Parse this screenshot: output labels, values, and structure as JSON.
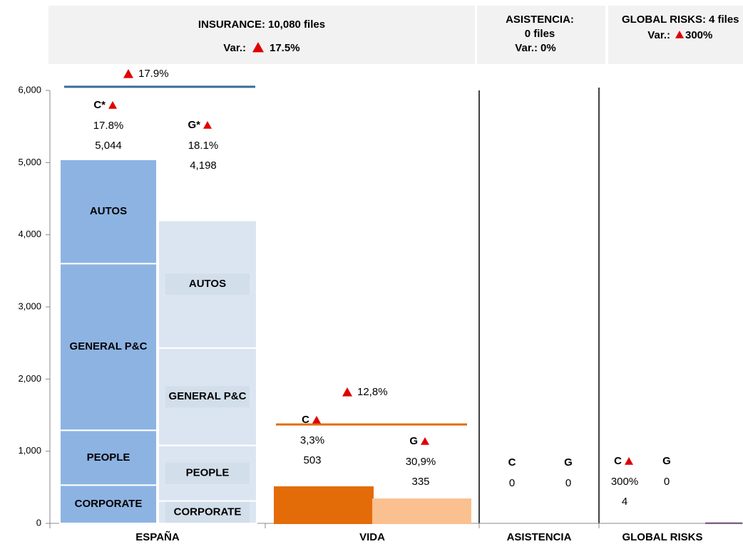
{
  "chart_data": {
    "type": "segmented_bar",
    "headers": [
      {
        "title": "INSURANCE:",
        "files": "10,080 files",
        "var_label": "Var.:",
        "var_value": "17.5%"
      },
      {
        "title": "ASISTENCIA:",
        "files": "0 files",
        "var_label": "Var.:",
        "var_value": "0%"
      },
      {
        "title": "GLOBAL RISKS:",
        "files": "4 files",
        "var_label": "Var.:",
        "var_value": "300%"
      }
    ],
    "ylim": [
      0,
      6000
    ],
    "yticks": [
      0,
      {
        "value": 1000,
        "label": "1,000"
      },
      {
        "value": 2000,
        "label": "2,000"
      },
      {
        "value": 3000,
        "label": "3,000"
      },
      {
        "value": 4000,
        "label": "4,000"
      },
      {
        "value": 5000,
        "label": "5,000"
      },
      {
        "value": 6000,
        "label": "6,000"
      }
    ],
    "categories": [
      "ESPAÑA",
      "VIDA",
      "ASISTENCIA",
      "GLOBAL RISKS"
    ],
    "groups": [
      {
        "var": "17.9%",
        "line_value": 6050,
        "line_color": "#3a6a96",
        "bars": [
          {
            "letter": "C*",
            "var": "17.8%",
            "value": 5044,
            "value_label": "5,044",
            "color": "#8db3e2",
            "segments": [
              {
                "name": "CORPORATE",
                "value": 530
              },
              {
                "name": "PEOPLE",
                "value": 760
              },
              {
                "name": "GENERAL P&C",
                "value": 2310
              },
              {
                "name": "AUTOS",
                "value": 1444
              }
            ]
          },
          {
            "letter": "G*",
            "var": "18.1%",
            "value": 4198,
            "value_label": "4,198",
            "color": "#dbe5f1",
            "segments": [
              {
                "name": "CORPORATE",
                "value": 310
              },
              {
                "name": "PEOPLE",
                "value": 770
              },
              {
                "name": "GENERAL P&C",
                "value": 1350
              },
              {
                "name": "AUTOS",
                "value": 1768
              }
            ]
          }
        ]
      },
      {
        "var": "12,8%",
        "line_value": 1370,
        "line_color": "#e36c09",
        "bars": [
          {
            "letter": "C",
            "var": "3,3%",
            "value": 503,
            "color": "#e36c09"
          },
          {
            "letter": "G",
            "var": "30,9%",
            "value": 335,
            "color": "#fac090"
          }
        ]
      },
      {
        "bars": [
          {
            "letter": "C",
            "value": 0,
            "color": "#7f6084"
          },
          {
            "letter": "G",
            "value": 0,
            "color": "#7f6084"
          }
        ]
      },
      {
        "bars": [
          {
            "letter": "C",
            "var": "300%",
            "value": 4,
            "color": "#7f6084"
          },
          {
            "letter": "G",
            "value": 0,
            "color": "#7f6084"
          }
        ]
      }
    ]
  }
}
